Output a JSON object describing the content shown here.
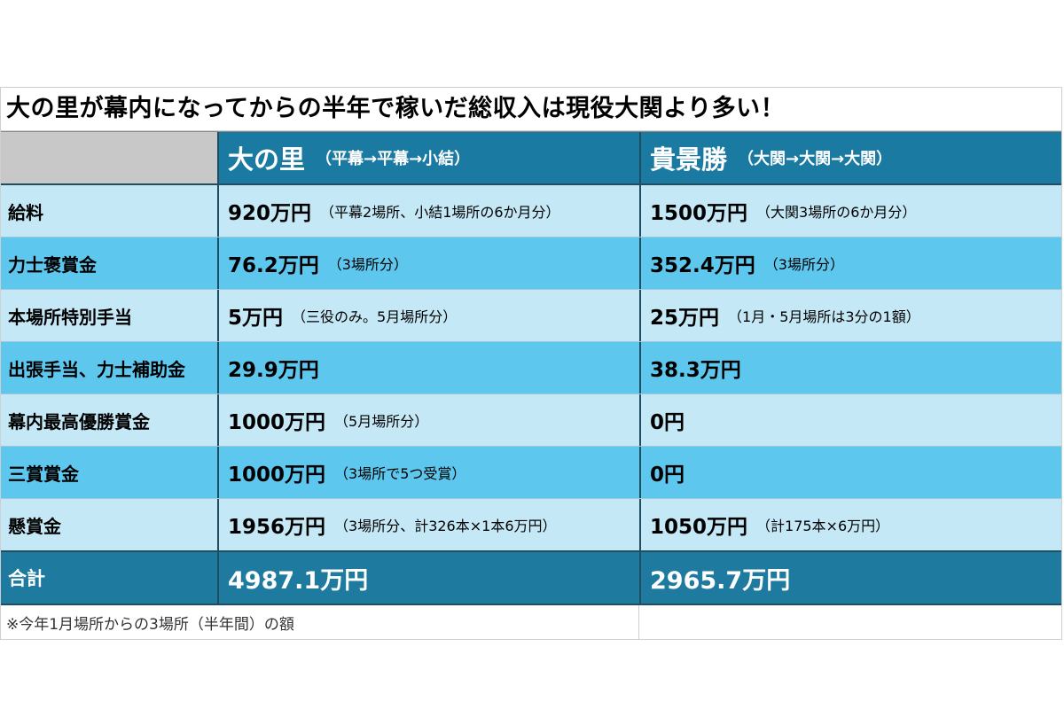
{
  "title": "大の里が幕内になってからの半年で稼いだ総収入は現役大関より多い！",
  "header": {
    "col2": {
      "name": "大の里",
      "sub": "（平幕→平幕→小結）"
    },
    "col3": {
      "name": "貴景勝",
      "sub": "（大関→大関→大関）"
    }
  },
  "rows": [
    {
      "label": "給料",
      "a_amount": "920万円",
      "a_note": "（平幕2場所、小結1場所の6か月分）",
      "b_amount": "1500万円",
      "b_note": "（大関3場所の6か月分）"
    },
    {
      "label": "力士褒賞金",
      "a_amount": "76.2万円",
      "a_note": "（3場所分）",
      "b_amount": "352.4万円",
      "b_note": "（3場所分）"
    },
    {
      "label": "本場所特別手当",
      "a_amount": "5万円",
      "a_note": "（三役のみ。5月場所分）",
      "b_amount": "25万円",
      "b_note": "（1月・5月場所は3分の1額）"
    },
    {
      "label": "出張手当、力士補助金",
      "a_amount": "29.9万円",
      "a_note": "",
      "b_amount": "38.3万円",
      "b_note": ""
    },
    {
      "label": "幕内最高優勝賞金",
      "a_amount": "1000万円",
      "a_note": "（5月場所分）",
      "b_amount": "0円",
      "b_note": ""
    },
    {
      "label": "三賞賞金",
      "a_amount": "1000万円",
      "a_note": "（3場所で5つ受賞）",
      "b_amount": "0円",
      "b_note": ""
    },
    {
      "label": "懸賞金",
      "a_amount": "1956万円",
      "a_note": "（3場所分、計326本×1本6万円）",
      "b_amount": "1050万円",
      "b_note": "（計175本×6万円）"
    }
  ],
  "total": {
    "label": "合計",
    "a_amount": "4987.1万円",
    "b_amount": "2965.7万円"
  },
  "footnote": "※今年1月場所からの3場所（半年間）の額",
  "colors": {
    "header_blue": "#1b7aa2",
    "row_light": "#c5e8f6",
    "row_dark": "#5ec7ee",
    "total_blue": "#1e7a9e",
    "label_header_gray": "#c8c8c8"
  }
}
